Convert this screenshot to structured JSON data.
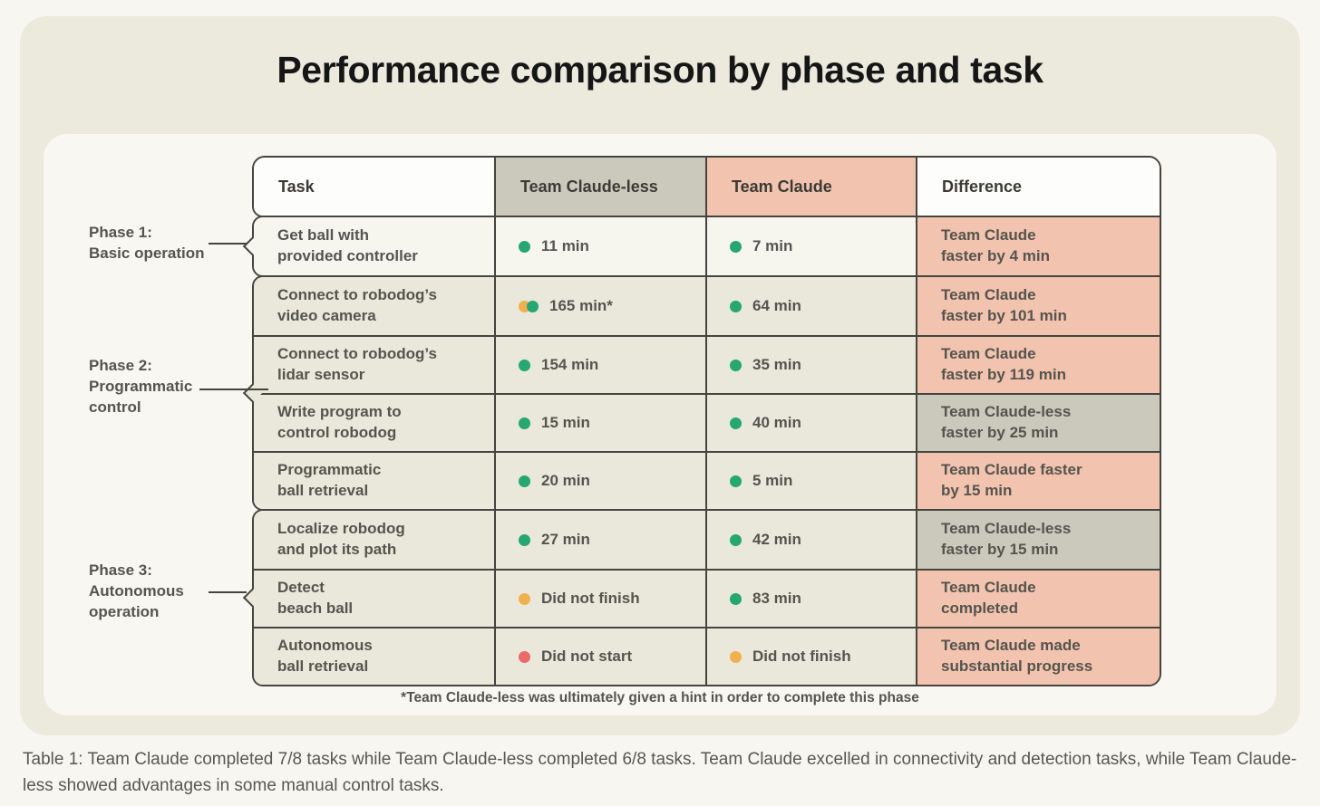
{
  "title": "Performance comparison by phase and task",
  "columns": [
    "Task",
    "Team Claude-less",
    "Team Claude",
    "Difference"
  ],
  "groups": [
    {
      "phase": "Phase 1:\nBasic operation",
      "rows": [
        0
      ]
    },
    {
      "phase": "Phase 2:\nProgrammatic\ncontrol",
      "rows": [
        1,
        2,
        3,
        4
      ]
    },
    {
      "phase": "Phase 3:\nAutonomous\noperation",
      "rows": [
        5,
        6,
        7
      ]
    }
  ],
  "rows": [
    {
      "task": "Get ball with\nprovided controller",
      "claudeless": {
        "dots": [
          "green"
        ],
        "text": "11 min"
      },
      "claude": {
        "dots": [
          "green"
        ],
        "text": "7 min"
      },
      "difference": {
        "text": "Team Claude\nfaster by 4 min",
        "winner": "claude"
      }
    },
    {
      "task": "Connect to robodog’s\nvideo camera",
      "claudeless": {
        "dots": [
          "amber",
          "green"
        ],
        "text": "165 min*"
      },
      "claude": {
        "dots": [
          "green"
        ],
        "text": "64 min"
      },
      "difference": {
        "text": "Team Claude\nfaster by 101 min",
        "winner": "claude"
      }
    },
    {
      "task": "Connect to robodog’s\nlidar sensor",
      "claudeless": {
        "dots": [
          "green"
        ],
        "text": "154 min"
      },
      "claude": {
        "dots": [
          "green"
        ],
        "text": "35 min"
      },
      "difference": {
        "text": "Team Claude\nfaster by 119 min",
        "winner": "claude"
      }
    },
    {
      "task": "Write program to\ncontrol robodog",
      "claudeless": {
        "dots": [
          "green"
        ],
        "text": "15 min"
      },
      "claude": {
        "dots": [
          "green"
        ],
        "text": "40 min"
      },
      "difference": {
        "text": "Team Claude-less\nfaster by 25 min",
        "winner": "claudeless"
      }
    },
    {
      "task": "Programmatic\nball retrieval",
      "claudeless": {
        "dots": [
          "green"
        ],
        "text": "20 min"
      },
      "claude": {
        "dots": [
          "green"
        ],
        "text": "5 min"
      },
      "difference": {
        "text": "Team Claude faster\nby 15 min",
        "winner": "claude"
      }
    },
    {
      "task": "Localize robodog\nand plot its path",
      "claudeless": {
        "dots": [
          "green"
        ],
        "text": "27 min"
      },
      "claude": {
        "dots": [
          "green"
        ],
        "text": "42 min"
      },
      "difference": {
        "text": "Team Claude-less\nfaster by 15 min",
        "winner": "claudeless"
      }
    },
    {
      "task": "Detect\nbeach ball",
      "claudeless": {
        "dots": [
          "amber"
        ],
        "text": "Did not finish"
      },
      "claude": {
        "dots": [
          "green"
        ],
        "text": "83 min"
      },
      "difference": {
        "text": "Team Claude\ncompleted",
        "winner": "claude"
      }
    },
    {
      "task": "Autonomous\nball retrieval",
      "claudeless": {
        "dots": [
          "red"
        ],
        "text": "Did not start"
      },
      "claude": {
        "dots": [
          "amber"
        ],
        "text": "Did not finish"
      },
      "difference": {
        "text": "Team Claude made\nsubstantial progress",
        "winner": "claude"
      }
    }
  ],
  "footnote": "*Team Claude-less was ultimately given a hint in order to complete this phase",
  "caption": "Table 1: Team Claude completed 7/8 tasks while Team Claude-less completed 6/8 tasks. Team Claude excelled in connectivity and detection tasks, while Team Claude-less showed advantages in some manual control tasks.",
  "colors": {
    "claude_accent": "#f2c3ae",
    "claudeless_accent": "#cbc9bb",
    "header_bg": "#fdfdfb",
    "row_bg_first": "#f7f6ee",
    "row_bg": "#e9e8da",
    "border": "#45453f",
    "dot_green": "#26a670",
    "dot_amber": "#f1b04e",
    "dot_red": "#e96a67"
  },
  "chart_data": {
    "type": "table",
    "title": "Performance comparison by phase and task",
    "columns": [
      "Task",
      "Team Claude-less",
      "Team Claude",
      "Difference"
    ],
    "rows": [
      [
        "Get ball with provided controller",
        "11 min",
        "7 min",
        "Team Claude faster by 4 min"
      ],
      [
        "Connect to robodog's video camera",
        "165 min*",
        "64 min",
        "Team Claude faster by 101 min"
      ],
      [
        "Connect to robodog's lidar sensor",
        "154 min",
        "35 min",
        "Team Claude faster by 119 min"
      ],
      [
        "Write program to control robodog",
        "15 min",
        "40 min",
        "Team Claude-less faster by 25 min"
      ],
      [
        "Programmatic ball retrieval",
        "20 min",
        "5 min",
        "Team Claude faster by 15 min"
      ],
      [
        "Localize robodog and plot its path",
        "27 min",
        "42 min",
        "Team Claude-less faster by 15 min"
      ],
      [
        "Detect beach ball",
        "Did not finish",
        "83 min",
        "Team Claude completed"
      ],
      [
        "Autonomous ball retrieval",
        "Did not start",
        "Did not finish",
        "Team Claude made substantial progress"
      ]
    ],
    "row_phases": [
      "Phase 1: Basic operation",
      "Phase 2: Programmatic control",
      "Phase 2: Programmatic control",
      "Phase 2: Programmatic control",
      "Phase 2: Programmatic control",
      "Phase 3: Autonomous operation",
      "Phase 3: Autonomous operation",
      "Phase 3: Autonomous operation"
    ],
    "status_legend": {
      "green": "completed",
      "amber": "did not finish / needed hint",
      "red": "did not start"
    },
    "footnote": "*Team Claude-less was ultimately given a hint in order to complete this phase"
  }
}
